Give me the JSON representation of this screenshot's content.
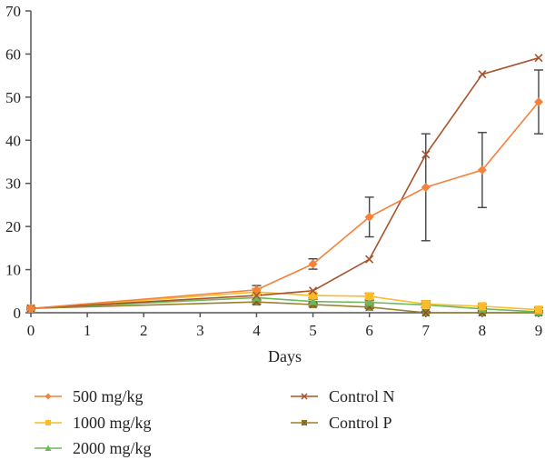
{
  "chart_data": {
    "type": "line",
    "title": "",
    "xlabel": "Days",
    "ylabel": "",
    "xlim": [
      0,
      9
    ],
    "ylim": [
      0,
      70
    ],
    "x_ticks": [
      "0",
      "1",
      "2",
      "3",
      "4",
      "5",
      "6",
      "7",
      "8",
      "9"
    ],
    "y_ticks": [
      "0",
      "10",
      "20",
      "30",
      "40",
      "50",
      "60",
      "70"
    ],
    "grid": false,
    "legend_position": "bottom",
    "x": [
      0,
      4,
      5,
      6,
      7,
      8,
      9
    ],
    "series": [
      {
        "name": "500 mg/kg",
        "color": "#f4823c",
        "marker": "diamond",
        "values": [
          1.0,
          5.3,
          11.3,
          22.2,
          29.1,
          33.1,
          48.9
        ],
        "errors": [
          0.3,
          1.0,
          1.2,
          4.6,
          12.4,
          8.7,
          7.4
        ]
      },
      {
        "name": "1000 mg/kg",
        "color": "#fbbb2a",
        "marker": "square",
        "values": [
          1.0,
          4.8,
          4.0,
          3.8,
          2.0,
          1.5,
          0.7
        ],
        "errors": [
          0.3,
          0.8,
          0.5,
          0.7,
          0.8,
          0.5,
          0.5
        ]
      },
      {
        "name": "2000 mg/kg",
        "color": "#6db85a",
        "marker": "triangle",
        "values": [
          1.0,
          3.5,
          2.6,
          2.4,
          1.8,
          0.9,
          0.2
        ],
        "errors": [
          0.3,
          0.7,
          0.5,
          0.4,
          0.5,
          0.4,
          0.3
        ]
      },
      {
        "name": "Control N",
        "color": "#a8532a",
        "marker": "x",
        "values": [
          1.0,
          4.0,
          5.1,
          12.4,
          36.7,
          55.3,
          59.1
        ],
        "errors": [
          0,
          0,
          0,
          0,
          0,
          0,
          0
        ]
      },
      {
        "name": "Control P",
        "color": "#9c7f2e",
        "marker": "asterisk",
        "values": [
          1.0,
          2.5,
          1.9,
          1.3,
          0.0,
          0.0,
          0.0
        ],
        "errors": [
          0.2,
          0.5,
          0.4,
          0.3,
          0.3,
          0.2,
          0.2
        ]
      }
    ]
  }
}
